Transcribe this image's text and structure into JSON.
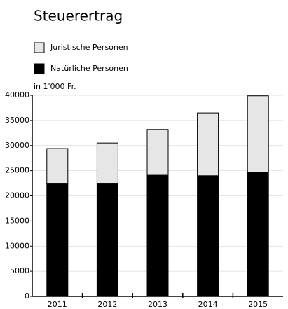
{
  "chart_data": {
    "type": "stacked_bar",
    "title": "Steuerertrag",
    "unit_label": "in 1'000 Fr.",
    "categories": [
      "2011",
      "2012",
      "2013",
      "2014",
      "2015"
    ],
    "series": [
      {
        "name": "Natürliche Personen",
        "color": "#000000",
        "values": [
          22500,
          22500,
          24100,
          24000,
          24700
        ]
      },
      {
        "name": "Juristische Personen",
        "color": "#e6e6e6",
        "values": [
          6900,
          8000,
          9100,
          12500,
          15200
        ]
      }
    ],
    "ylim": [
      0,
      40000
    ],
    "yticks": [
      0,
      5000,
      10000,
      15000,
      20000,
      25000,
      30000,
      35000,
      40000
    ],
    "grid": true
  }
}
